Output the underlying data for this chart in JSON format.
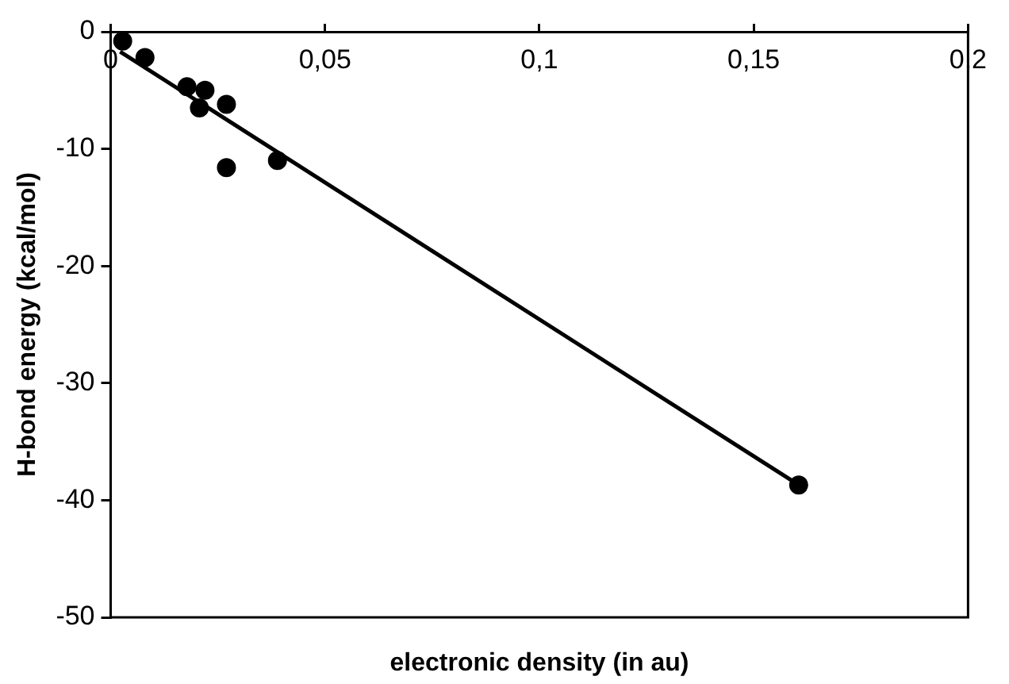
{
  "chart_data": {
    "type": "scatter",
    "xlabel": "electronic density (in au)",
    "ylabel": "H-bond energy (kcal/mol)",
    "series": [
      {
        "color": "#000000",
        "marker": "circle",
        "x": [
          0.0028,
          0.008,
          0.0178,
          0.022,
          0.0207,
          0.027,
          0.027,
          0.0389,
          0.1605
        ],
        "values": [
          -0.8,
          -2.2,
          -4.7,
          -5.0,
          -6.5,
          -6.2,
          -11.6,
          -11.0,
          -38.7
        ]
      },
      {
        "type": "line",
        "marker": "none",
        "color": "#000000",
        "x": [
          0.0022,
          0.1605
        ],
        "values": [
          -1.7,
          -38.7
        ]
      }
    ],
    "xlim": [
      0,
      0.2
    ],
    "ylim": [
      -50,
      0
    ],
    "xticks": [
      {
        "value": 0,
        "label": "0"
      },
      {
        "value": 0.05,
        "label": "0,05"
      },
      {
        "value": 0.1,
        "label": "0,1"
      },
      {
        "value": 0.15,
        "label": "0,15"
      },
      {
        "value": 0.2,
        "label": "0,2"
      }
    ],
    "yticks": [
      -50,
      -40,
      -30,
      -20,
      -10,
      0
    ],
    "grid": false,
    "legend": false
  }
}
